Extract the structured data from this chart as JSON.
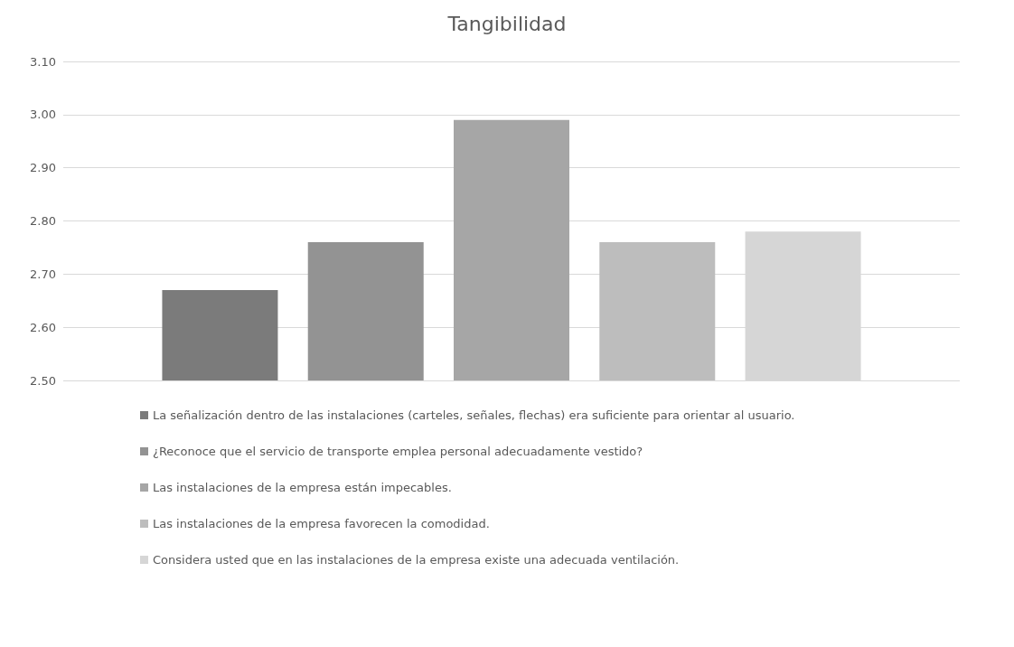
{
  "chart_data": {
    "type": "bar",
    "title": "Tangibilidad",
    "categories": [
      null
    ],
    "series": [
      {
        "name": "La señalización dentro de las instalaciones (carteles, señales, flechas) era suficiente para orientar al usuario.",
        "color": "#7b7b7b",
        "values": [
          2.67
        ]
      },
      {
        "name": "¿Reconoce que el servicio de transporte emplea personal adecuadamente vestido?",
        "color": "#939393",
        "values": [
          2.76
        ]
      },
      {
        "name": "Las instalaciones de la empresa están impecables.",
        "color": "#a6a6a6",
        "values": [
          2.99
        ]
      },
      {
        "name": "Las instalaciones de la empresa favorecen la comodidad.",
        "color": "#bdbdbd",
        "values": [
          2.76
        ]
      },
      {
        "name": "Considera usted que en las instalaciones de la empresa existe una adecuada ventilación.",
        "color": "#d6d6d6",
        "values": [
          2.78
        ]
      }
    ],
    "ylim": [
      2.5,
      3.1
    ],
    "yticks": [
      {
        "value": 2.5,
        "label": "2.50"
      },
      {
        "value": 2.6,
        "label": "2.60"
      },
      {
        "value": 2.7,
        "label": "2.70"
      },
      {
        "value": 2.8,
        "label": "2.80"
      },
      {
        "value": 2.9,
        "label": "2.90"
      },
      {
        "value": 3.0,
        "label": "3.00"
      },
      {
        "value": 3.1,
        "label": "3.10"
      }
    ],
    "grid": "y",
    "legend": "bottom",
    "tick_labels": "y"
  }
}
